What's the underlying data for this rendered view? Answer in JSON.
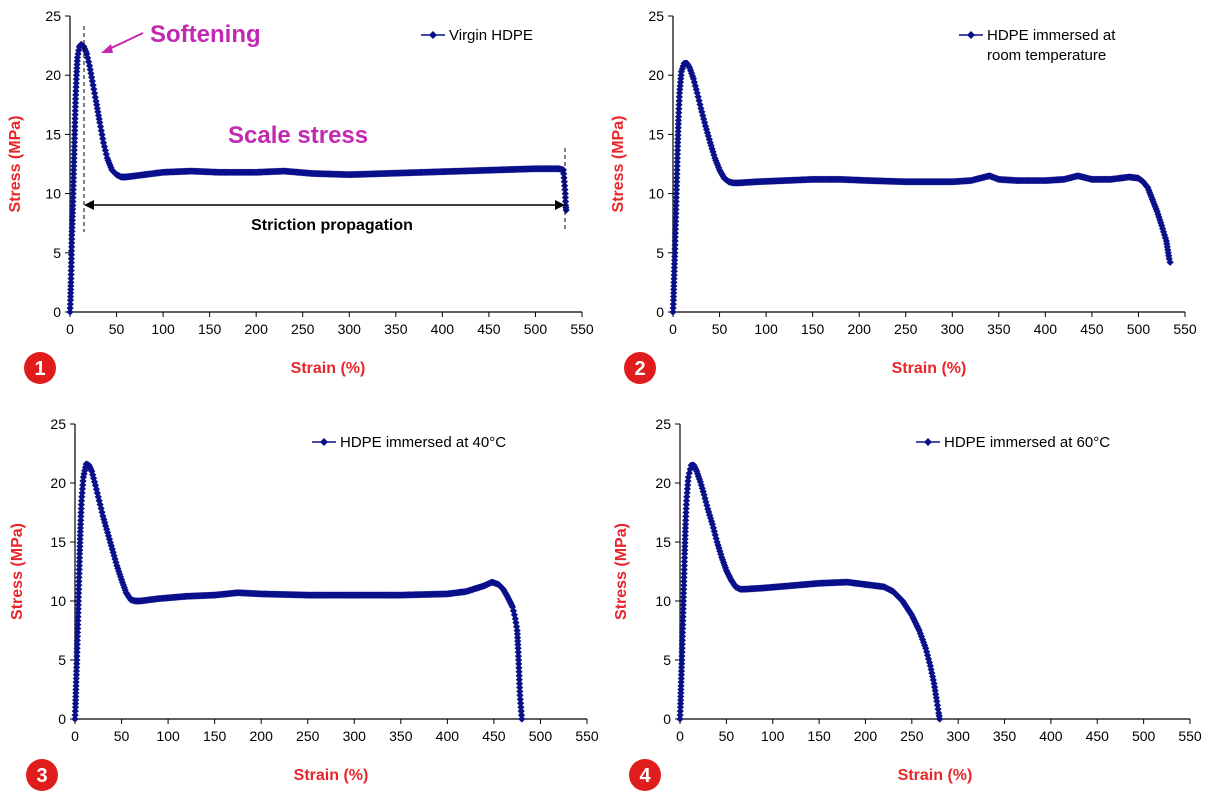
{
  "colors": {
    "series": "#0a0f8a",
    "axis_title": "#e8262a",
    "annotation": "#c229b0",
    "badge": "#e11c1c",
    "axis": "#000000"
  },
  "chart_data": [
    {
      "type": "scatter",
      "panel_number": "1",
      "xlabel": "Strain (%)",
      "ylabel": "Stress (MPa)",
      "xlim": [
        0,
        550
      ],
      "ylim": [
        0,
        25
      ],
      "xticks": [
        0,
        50,
        100,
        150,
        200,
        250,
        300,
        350,
        400,
        450,
        500,
        550
      ],
      "yticks": [
        0,
        5,
        10,
        15,
        20,
        25
      ],
      "legend": "top-right",
      "grid": false,
      "series": [
        {
          "name": "Virgin HDPE",
          "points": [
            [
              0,
              0
            ],
            [
              0.5,
              1
            ],
            [
              1,
              2.5
            ],
            [
              1.5,
              4.5
            ],
            [
              2,
              6.5
            ],
            [
              3,
              9
            ],
            [
              4,
              12
            ],
            [
              5,
              15
            ],
            [
              6,
              18
            ],
            [
              7,
              20
            ],
            [
              8,
              21.5
            ],
            [
              10,
              22.4
            ],
            [
              12,
              22.6
            ],
            [
              15,
              22.4
            ],
            [
              18,
              21.8
            ],
            [
              21,
              20.8
            ],
            [
              24,
              19.5
            ],
            [
              28,
              17.8
            ],
            [
              32,
              16
            ],
            [
              36,
              14.3
            ],
            [
              40,
              13
            ],
            [
              45,
              12
            ],
            [
              50,
              11.6
            ],
            [
              55,
              11.4
            ],
            [
              60,
              11.4
            ],
            [
              70,
              11.5
            ],
            [
              80,
              11.6
            ],
            [
              100,
              11.8
            ],
            [
              130,
              11.9
            ],
            [
              160,
              11.8
            ],
            [
              200,
              11.8
            ],
            [
              230,
              11.9
            ],
            [
              260,
              11.7
            ],
            [
              300,
              11.6
            ],
            [
              340,
              11.7
            ],
            [
              380,
              11.8
            ],
            [
              420,
              11.9
            ],
            [
              460,
              12
            ],
            [
              500,
              12.1
            ],
            [
              525,
              12.1
            ],
            [
              530,
              12
            ],
            [
              531,
              11
            ],
            [
              532,
              10
            ],
            [
              532.5,
              9
            ],
            [
              533,
              8.6
            ]
          ]
        }
      ],
      "annotations": {
        "softening": "Softening",
        "scale_stress": "Scale stress",
        "striction": "Striction propagation"
      }
    },
    {
      "type": "scatter",
      "panel_number": "2",
      "xlabel": "Strain (%)",
      "ylabel": "Stress (MPa)",
      "xlim": [
        0,
        550
      ],
      "ylim": [
        0,
        25
      ],
      "xticks": [
        0,
        50,
        100,
        150,
        200,
        250,
        300,
        350,
        400,
        450,
        500,
        550
      ],
      "yticks": [
        0,
        5,
        10,
        15,
        20,
        25
      ],
      "legend": "top-right",
      "grid": false,
      "series": [
        {
          "name": "HDPE immersed at room temperature",
          "points": [
            [
              0,
              0
            ],
            [
              0.5,
              1
            ],
            [
              1,
              2.5
            ],
            [
              2,
              5
            ],
            [
              3,
              8
            ],
            [
              4,
              11
            ],
            [
              5,
              14
            ],
            [
              6,
              16.5
            ],
            [
              7,
              18.5
            ],
            [
              9,
              20.3
            ],
            [
              12,
              21
            ],
            [
              15,
              21
            ],
            [
              18,
              20.6
            ],
            [
              22,
              19.7
            ],
            [
              26,
              18.5
            ],
            [
              30,
              17.2
            ],
            [
              35,
              15.7
            ],
            [
              40,
              14.3
            ],
            [
              45,
              13
            ],
            [
              50,
              12
            ],
            [
              55,
              11.3
            ],
            [
              60,
              11
            ],
            [
              65,
              10.9
            ],
            [
              70,
              10.9
            ],
            [
              90,
              11
            ],
            [
              120,
              11.1
            ],
            [
              150,
              11.2
            ],
            [
              180,
              11.2
            ],
            [
              210,
              11.1
            ],
            [
              250,
              11
            ],
            [
              280,
              11
            ],
            [
              300,
              11
            ],
            [
              320,
              11.1
            ],
            [
              340,
              11.5
            ],
            [
              350,
              11.2
            ],
            [
              370,
              11.1
            ],
            [
              400,
              11.1
            ],
            [
              420,
              11.2
            ],
            [
              435,
              11.5
            ],
            [
              450,
              11.2
            ],
            [
              470,
              11.2
            ],
            [
              490,
              11.4
            ],
            [
              500,
              11.3
            ],
            [
              505,
              11
            ],
            [
              510,
              10.5
            ],
            [
              515,
              9.5
            ],
            [
              520,
              8.5
            ],
            [
              525,
              7.3
            ],
            [
              528,
              6.5
            ],
            [
              530,
              6
            ],
            [
              531,
              5.5
            ],
            [
              532,
              5
            ],
            [
              533,
              4.5
            ],
            [
              534,
              4.2
            ]
          ]
        }
      ]
    },
    {
      "type": "scatter",
      "panel_number": "3",
      "xlabel": "Strain (%)",
      "ylabel": "Stress (MPa)",
      "xlim": [
        0,
        550
      ],
      "ylim": [
        0,
        25
      ],
      "xticks": [
        0,
        50,
        100,
        150,
        200,
        250,
        300,
        350,
        400,
        450,
        500,
        550
      ],
      "yticks": [
        0,
        5,
        10,
        15,
        20,
        25
      ],
      "legend": "top-right",
      "grid": false,
      "series": [
        {
          "name": "HDPE immersed at 40°C",
          "points": [
            [
              0,
              0
            ],
            [
              0.5,
              1
            ],
            [
              1,
              2.5
            ],
            [
              2,
              5
            ],
            [
              3,
              8
            ],
            [
              4,
              11
            ],
            [
              5,
              14
            ],
            [
              6,
              16.5
            ],
            [
              7,
              18.5
            ],
            [
              9,
              20.5
            ],
            [
              12,
              21.6
            ],
            [
              15,
              21.5
            ],
            [
              18,
              21
            ],
            [
              22,
              19.8
            ],
            [
              26,
              18.5
            ],
            [
              30,
              17.2
            ],
            [
              35,
              15.8
            ],
            [
              40,
              14.4
            ],
            [
              45,
              13
            ],
            [
              50,
              11.8
            ],
            [
              55,
              10.7
            ],
            [
              60,
              10.1
            ],
            [
              65,
              10
            ],
            [
              70,
              10
            ],
            [
              90,
              10.2
            ],
            [
              120,
              10.4
            ],
            [
              150,
              10.5
            ],
            [
              175,
              10.7
            ],
            [
              200,
              10.6
            ],
            [
              250,
              10.5
            ],
            [
              300,
              10.5
            ],
            [
              350,
              10.5
            ],
            [
              400,
              10.6
            ],
            [
              420,
              10.8
            ],
            [
              440,
              11.3
            ],
            [
              448,
              11.6
            ],
            [
              455,
              11.4
            ],
            [
              460,
              11
            ],
            [
              465,
              10.3
            ],
            [
              470,
              9.5
            ],
            [
              473,
              8.5
            ],
            [
              475,
              7.5
            ],
            [
              476,
              6
            ],
            [
              477,
              4
            ],
            [
              478,
              2
            ],
            [
              479,
              1
            ],
            [
              480,
              0
            ]
          ]
        }
      ]
    },
    {
      "type": "scatter",
      "panel_number": "4",
      "xlabel": "Strain (%)",
      "ylabel": "Stress (MPa)",
      "xlim": [
        0,
        550
      ],
      "ylim": [
        0,
        25
      ],
      "xticks": [
        0,
        50,
        100,
        150,
        200,
        250,
        300,
        350,
        400,
        450,
        500,
        550
      ],
      "yticks": [
        0,
        5,
        10,
        15,
        20,
        25
      ],
      "legend": "top-right",
      "grid": false,
      "series": [
        {
          "name": "HDPE immersed at 60°C",
          "points": [
            [
              0,
              0
            ],
            [
              0.5,
              1
            ],
            [
              1,
              2.5
            ],
            [
              2,
              5
            ],
            [
              3,
              8
            ],
            [
              4,
              11
            ],
            [
              5,
              14
            ],
            [
              6,
              16.5
            ],
            [
              7,
              18.5
            ],
            [
              9,
              20.5
            ],
            [
              12,
              21.5
            ],
            [
              15,
              21.5
            ],
            [
              18,
              21
            ],
            [
              22,
              20.1
            ],
            [
              26,
              19
            ],
            [
              30,
              17.8
            ],
            [
              35,
              16.5
            ],
            [
              40,
              15
            ],
            [
              45,
              13.7
            ],
            [
              50,
              12.6
            ],
            [
              55,
              11.8
            ],
            [
              60,
              11.2
            ],
            [
              65,
              11
            ],
            [
              70,
              11
            ],
            [
              90,
              11.1
            ],
            [
              120,
              11.3
            ],
            [
              150,
              11.5
            ],
            [
              180,
              11.6
            ],
            [
              200,
              11.4
            ],
            [
              220,
              11.2
            ],
            [
              230,
              10.8
            ],
            [
              240,
              10
            ],
            [
              250,
              8.8
            ],
            [
              258,
              7.5
            ],
            [
              265,
              6
            ],
            [
              270,
              4.5
            ],
            [
              274,
              3
            ],
            [
              277,
              1.5
            ],
            [
              279,
              0.5
            ],
            [
              280,
              0
            ]
          ]
        }
      ]
    }
  ]
}
